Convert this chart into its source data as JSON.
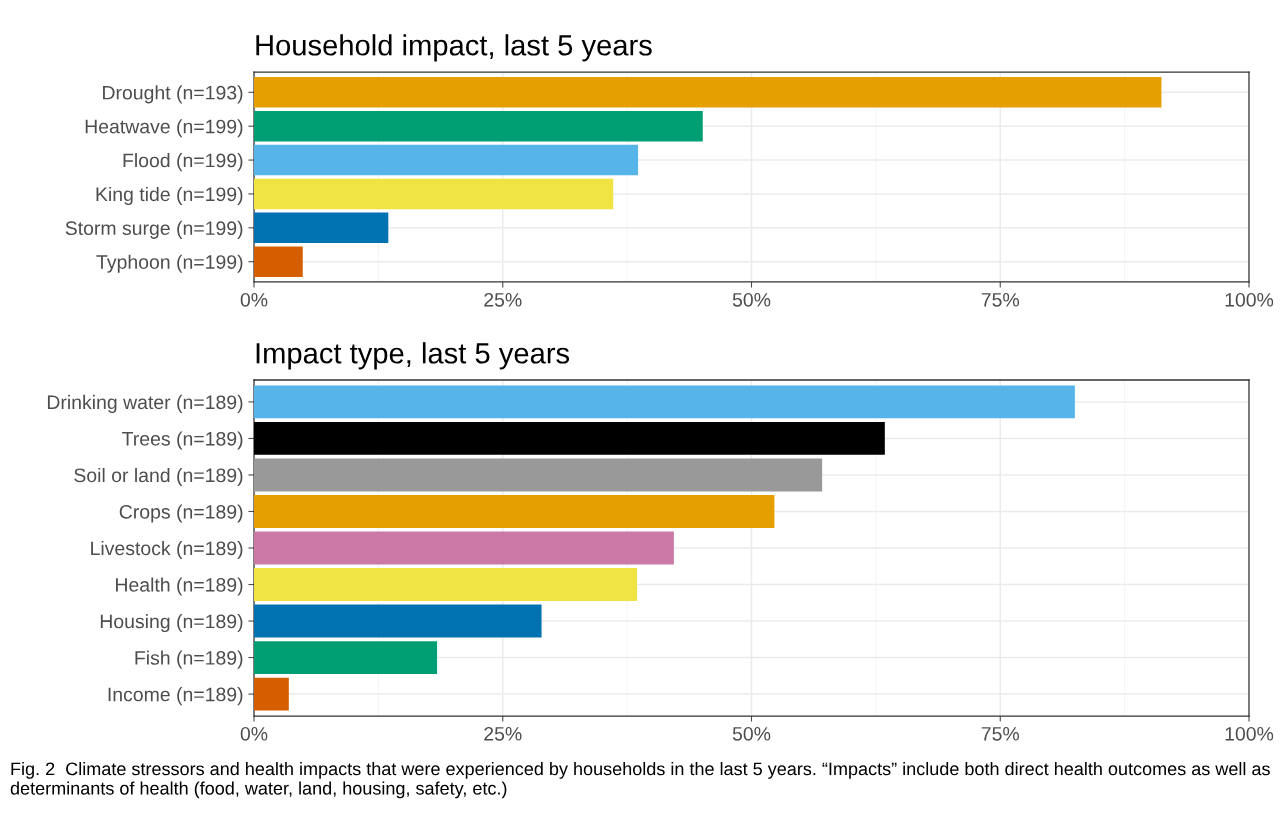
{
  "chart_data": [
    {
      "type": "bar",
      "orientation": "horizontal",
      "title": "Household impact, last 5 years",
      "categories": [
        "Drought (n=193)",
        "Heatwave (n=199)",
        "Flood (n=199)",
        "King tide (n=199)",
        "Storm surge (n=199)",
        "Typhoon (n=199)"
      ],
      "values": [
        91.2,
        45.1,
        38.6,
        36.1,
        13.5,
        4.9
      ],
      "colors": [
        "#e69f00",
        "#009e73",
        "#56b4e9",
        "#f0e442",
        "#0072b2",
        "#d55e00"
      ],
      "xlim": [
        0,
        100
      ],
      "xticks": [
        {
          "value": 0,
          "label": "0%"
        },
        {
          "value": 25,
          "label": "25%"
        },
        {
          "value": 50,
          "label": "50%"
        },
        {
          "value": 75,
          "label": "75%"
        },
        {
          "value": 100,
          "label": "100%"
        }
      ],
      "grid": true,
      "legend": false
    },
    {
      "type": "bar",
      "orientation": "horizontal",
      "title": "Impact type, last 5 years",
      "categories": [
        "Drinking water (n=189)",
        "Trees (n=189)",
        "Soil or land (n=189)",
        "Crops (n=189)",
        "Livestock (n=189)",
        "Health (n=189)",
        "Housing (n=189)",
        "Fish (n=189)",
        "Income (n=189)"
      ],
      "values": [
        82.5,
        63.4,
        57.1,
        52.3,
        42.2,
        38.5,
        28.9,
        18.4,
        3.5
      ],
      "colors": [
        "#56b4e9",
        "#000000",
        "#999999",
        "#e69f00",
        "#cc79a7",
        "#f0e442",
        "#0072b2",
        "#009e73",
        "#d55e00"
      ],
      "xlim": [
        0,
        100
      ],
      "xticks": [
        {
          "value": 0,
          "label": "0%"
        },
        {
          "value": 25,
          "label": "25%"
        },
        {
          "value": 50,
          "label": "50%"
        },
        {
          "value": 75,
          "label": "75%"
        },
        {
          "value": 100,
          "label": "100%"
        }
      ],
      "grid": true,
      "legend": false,
      "annotations": [
        "Fig. 2  Climate stressors and health impacts that were experienced by households in the last 5 years. “Impacts” include both direct health outcomes as well as determinants of health (food, water, land, housing, safety, etc.)"
      ]
    }
  ]
}
